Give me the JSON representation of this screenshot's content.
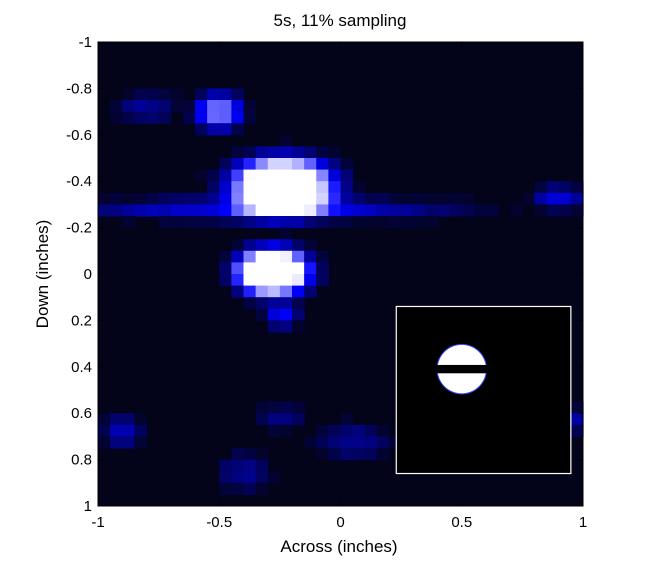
{
  "chart_data": {
    "type": "heatmap",
    "title": "5s, 11% sampling",
    "xlabel": "Across (inches)",
    "ylabel": "Down (inches)",
    "xlim": [
      -1,
      1
    ],
    "ylim": [
      -1,
      1
    ],
    "y_inverted": true,
    "x_ticks": [
      "-1",
      "-0.5",
      "0",
      "0.5",
      "1"
    ],
    "y_ticks": [
      "-1",
      "-0.8",
      "-0.6",
      "-0.4",
      "-0.2",
      "0",
      "0.2",
      "0.4",
      "0.6",
      "0.8",
      "1"
    ],
    "colormap": [
      "#000000",
      "#0000ff",
      "#ffffff"
    ],
    "background_color": "#03031a",
    "blobs": [
      {
        "label": "upper half-disc",
        "x": -0.24,
        "y": -0.38,
        "rx": 0.22,
        "ry": 0.13,
        "intensity": 1.0
      },
      {
        "label": "lower half-disc",
        "x": -0.28,
        "y": -0.01,
        "rx": 0.16,
        "ry": 0.11,
        "intensity": 1.0
      },
      {
        "label": "top artifact",
        "x": -0.5,
        "y": -0.7,
        "rx": 0.1,
        "ry": 0.08,
        "intensity": 0.55
      },
      {
        "label": "horizontal band",
        "x": -0.3,
        "y": -0.28,
        "rx": 0.75,
        "ry": 0.05,
        "intensity": 0.3
      },
      {
        "label": "band right end",
        "x": 0.9,
        "y": -0.33,
        "rx": 0.1,
        "ry": 0.05,
        "intensity": 0.3
      },
      {
        "label": "tail below lower disc",
        "x": -0.24,
        "y": 0.18,
        "rx": 0.07,
        "ry": 0.05,
        "intensity": 0.35
      },
      {
        "label": "top-left haze",
        "x": -0.8,
        "y": -0.72,
        "rx": 0.12,
        "ry": 0.06,
        "intensity": 0.2
      },
      {
        "label": "bottom-left haze",
        "x": -0.9,
        "y": 0.68,
        "rx": 0.08,
        "ry": 0.07,
        "intensity": 0.25
      },
      {
        "label": "bottom haze 1",
        "x": -0.4,
        "y": 0.85,
        "rx": 0.1,
        "ry": 0.08,
        "intensity": 0.18
      },
      {
        "label": "bottom haze 2",
        "x": 0.05,
        "y": 0.72,
        "rx": 0.14,
        "ry": 0.08,
        "intensity": 0.18
      },
      {
        "label": "bottom haze 3",
        "x": -0.25,
        "y": 0.62,
        "rx": 0.1,
        "ry": 0.05,
        "intensity": 0.15
      },
      {
        "label": "right haze",
        "x": 0.98,
        "y": 0.63,
        "rx": 0.05,
        "ry": 0.05,
        "intensity": 0.2
      }
    ],
    "inset": {
      "description": "reference object",
      "xlim": [
        0.23,
        0.95
      ],
      "ylim": [
        0.14,
        0.86
      ],
      "disc_center": [
        0.5,
        0.41
      ],
      "disc_radius": 0.1,
      "bar_half_height": 0.018,
      "background": "#000000",
      "border": "#ffffff"
    }
  }
}
